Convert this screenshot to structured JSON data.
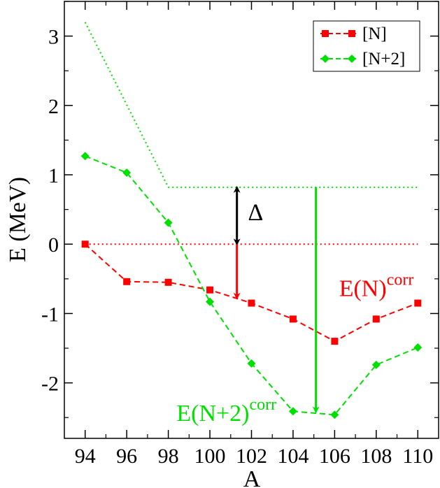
{
  "chart_data": {
    "type": "line",
    "xlabel": "A",
    "ylabel": "E (MeV)",
    "xlim": [
      93,
      111
    ],
    "ylim": [
      -2.8,
      3.5
    ],
    "xticks": [
      94,
      96,
      98,
      100,
      102,
      104,
      106,
      108,
      110
    ],
    "yticks": [
      -2,
      -1,
      0,
      1,
      2,
      3
    ],
    "legend_position": "top-right",
    "grid": false,
    "series": [
      {
        "name": "[N]",
        "color": "#ff0000",
        "marker": "square",
        "x": [
          94,
          96,
          98,
          100,
          102,
          104,
          106,
          108,
          110
        ],
        "y": [
          0.0,
          -0.54,
          -0.55,
          -0.66,
          -0.85,
          -1.08,
          -1.4,
          -1.08,
          -0.85
        ]
      },
      {
        "name": "[N+2]",
        "color": "#00e000",
        "marker": "diamond",
        "x": [
          94,
          96,
          98,
          100,
          102,
          104,
          106,
          108,
          110
        ],
        "y": [
          1.27,
          1.03,
          0.31,
          -0.83,
          -1.72,
          -2.41,
          -2.46,
          -1.74,
          -1.49
        ]
      }
    ],
    "reference_lines": [
      {
        "color": "#ff0000",
        "x": [
          94,
          110
        ],
        "y": [
          0,
          0
        ]
      },
      {
        "color": "#00e000",
        "x": [
          94,
          98,
          110
        ],
        "y": [
          3.2,
          0.82,
          0.82
        ]
      }
    ],
    "arrows": [
      {
        "color": "#000000",
        "x": 101.3,
        "y_from": 0.0,
        "y_to": 0.82,
        "double": true
      },
      {
        "color": "#ff0000",
        "x": 101.3,
        "y_from": 0.0,
        "y_to": -0.78,
        "double": false
      },
      {
        "color": "#00e000",
        "x": 105.1,
        "y_from": 0.82,
        "y_to": -2.42,
        "double": false
      }
    ],
    "annotations": [
      {
        "text": "Δ",
        "color": "#000000",
        "x": 102.2,
        "y": 0.35
      },
      {
        "text": "E(N)",
        "sup": "corr",
        "color": "#ff0000",
        "x": 109.8,
        "y": -0.75
      },
      {
        "text": "E(N+2)",
        "sup": "corr",
        "color": "#00e000",
        "x": 103.2,
        "y": -2.55
      }
    ]
  }
}
